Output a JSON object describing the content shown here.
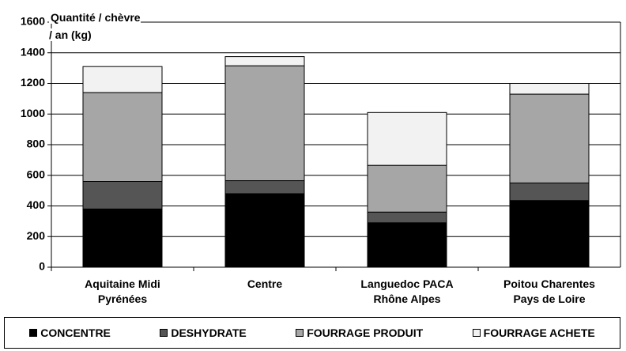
{
  "chart_data": {
    "type": "stacked_bar",
    "y_label": "Quantité / chèvre\n/ an (kg)",
    "categories": [
      "Aquitaine Midi\nPyrénées",
      "Centre",
      "Languedoc PACA\nRhône Alpes",
      "Poitou Charentes\nPays de Loire"
    ],
    "series": [
      {
        "name": "CONCENTRE",
        "color": "#000000",
        "values": [
          380,
          480,
          290,
          435
        ]
      },
      {
        "name": "DESHYDRATE",
        "color": "#555555",
        "values": [
          180,
          85,
          70,
          115
        ]
      },
      {
        "name": "FOURRAGE PRODUIT",
        "color": "#a6a6a6",
        "values": [
          580,
          750,
          305,
          580
        ]
      },
      {
        "name": "FOURRAGE ACHETE",
        "color": "#f2f2f2",
        "values": [
          170,
          60,
          345,
          70
        ]
      }
    ],
    "ylim": [
      0,
      1600
    ],
    "yticks": [
      0,
      200,
      400,
      600,
      800,
      1000,
      1200,
      1400,
      1600
    ],
    "grid": true
  }
}
